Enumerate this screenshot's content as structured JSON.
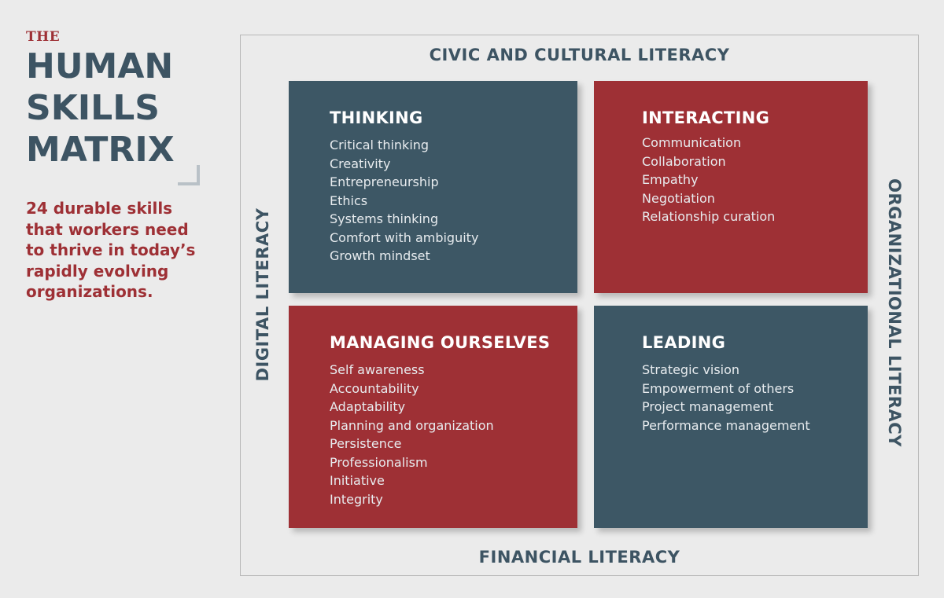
{
  "header": {
    "the": "THE",
    "title_lines": [
      "HUMAN",
      "SKILLS",
      "MATRIX"
    ],
    "subtitle_lines": [
      "24 durable skills",
      "that workers need",
      "to thrive in today’s",
      "rapidly evolving",
      "organizations."
    ]
  },
  "literacies": {
    "top": "CIVIC AND CULTURAL LITERACY",
    "bottom": "FINANCIAL LITERACY",
    "left": "DIGITAL LITERACY",
    "right": "ORGANIZATIONAL LITERACY"
  },
  "quadrants": [
    {
      "title": "THINKING",
      "color": "#3d5765",
      "skills": [
        "Critical thinking",
        "Creativity",
        "Entrepreneurship",
        "Ethics",
        "Systems thinking",
        "Comfort with ambiguity",
        "Growth mindset"
      ]
    },
    {
      "title": "INTERACTING",
      "color": "#9e3035",
      "skills": [
        "Communication",
        "Collaboration",
        "Empathy",
        "Negotiation",
        "Relationship curation"
      ]
    },
    {
      "title": "MANAGING OURSELVES",
      "color": "#9e3035",
      "skills": [
        "Self awareness",
        "Accountability",
        "Adaptability",
        "Planning and organization",
        "Persistence",
        "Professionalism",
        "Initiative",
        "Integrity"
      ]
    },
    {
      "title": "LEADING",
      "color": "#3d5765",
      "skills": [
        "Strategic vision",
        "Empowerment of others",
        "Project management",
        "Performance management"
      ]
    }
  ],
  "colors": {
    "accent_red": "#9e3035",
    "accent_blue": "#3d5765",
    "background": "#ebebeb"
  }
}
